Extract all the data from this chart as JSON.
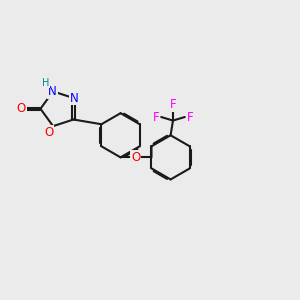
{
  "background_color": "#ebebeb",
  "bond_color": "#1a1a1a",
  "bond_width": 1.5,
  "atom_colors": {
    "O": "#ff0000",
    "N": "#0000ff",
    "H": "#008b8b",
    "F": "#ff00ff",
    "C": "#1a1a1a"
  },
  "font_size": 8.5,
  "figsize": [
    3.0,
    3.0
  ],
  "dpi": 100
}
